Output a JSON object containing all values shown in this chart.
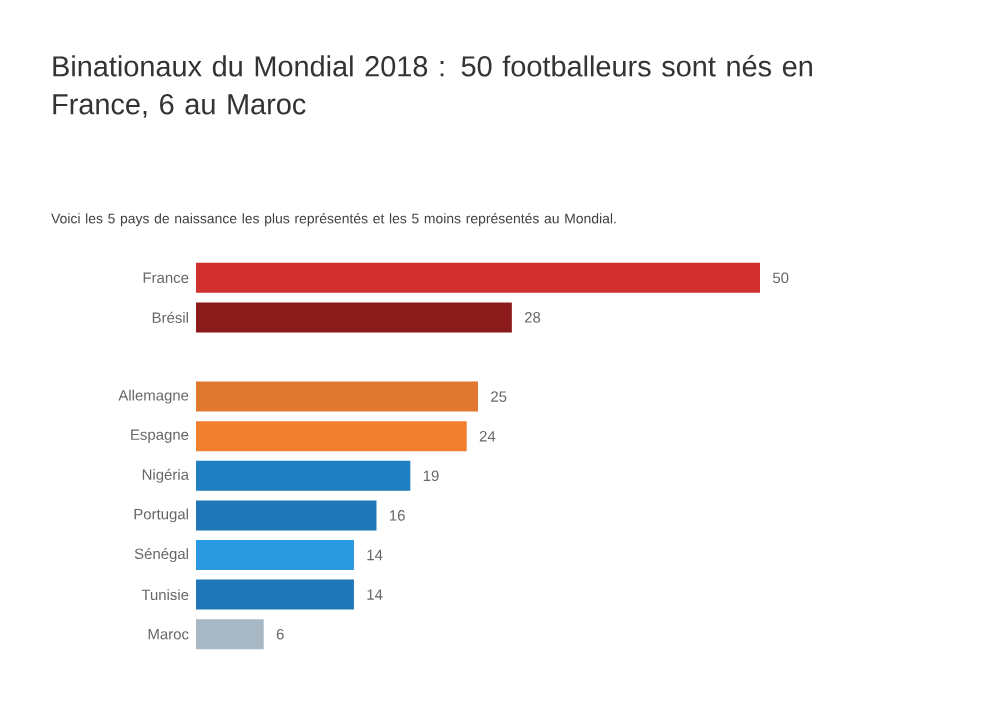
{
  "chart_data": {
    "type": "bar",
    "orientation": "horizontal",
    "data_labels": true,
    "title": "Binationaux du Mondial 2018 : 50 footballeurs sont nés en France, 6 au Maroc",
    "subtitle": "Voici les 5 pays de naissance les plus représentés et les 5 moins représentés au Mondial.",
    "categories": [
      "France",
      "Brésil",
      null,
      "Allemagne",
      "Espagne",
      "Nigéria",
      "Portugal",
      "Sénégal",
      "Tunisie",
      "Maroc"
    ],
    "values": [
      50,
      28,
      null,
      25,
      24,
      19,
      16,
      14,
      14,
      6
    ],
    "colors": [
      "#d32f2f",
      "#8b1a1a",
      "#e0792f",
      "#e0792f",
      "#f07f2f",
      "#1f7fc1",
      "#1f77b8",
      "#2a9ae0",
      "#1f77b8",
      "#a7b7c4"
    ]
  }
}
